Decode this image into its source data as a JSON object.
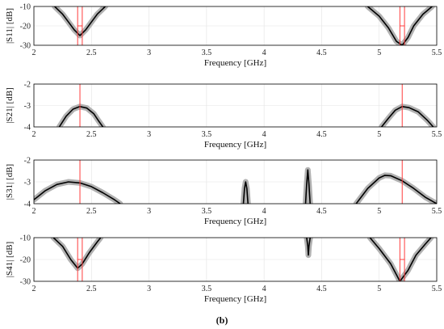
{
  "chart_data": [
    {
      "type": "line",
      "ylabel": "|S11| [dB]",
      "xlabel": "Frequency [GHz]",
      "xlim": [
        2,
        5.5
      ],
      "ylim": [
        -30,
        -10
      ],
      "xticks": [
        "2",
        "2.5",
        "3",
        "3.5",
        "4",
        "4.5",
        "5",
        "5.5"
      ],
      "yticks": [
        "-10",
        "-20",
        "-30"
      ],
      "grid": true,
      "series": [
        {
          "points": [
            [
              2.18,
              -10
            ],
            [
              2.25,
              -14
            ],
            [
              2.3,
              -18
            ],
            [
              2.35,
              -22
            ],
            [
              2.4,
              -25
            ],
            [
              2.45,
              -22
            ],
            [
              2.5,
              -18
            ],
            [
              2.55,
              -14
            ],
            [
              2.62,
              -10
            ]
          ]
        },
        {
          "points": [
            [
              4.9,
              -10
            ],
            [
              5.0,
              -15
            ],
            [
              5.08,
              -21
            ],
            [
              5.15,
              -28
            ],
            [
              5.2,
              -30
            ],
            [
              5.25,
              -26
            ],
            [
              5.3,
              -20
            ],
            [
              5.38,
              -14
            ],
            [
              5.46,
              -10
            ]
          ]
        }
      ],
      "markers_x": [
        2.38,
        2.42,
        5.18,
        5.22
      ],
      "marker_y": -20
    },
    {
      "type": "line",
      "ylabel": "|S21| [dB]",
      "xlabel": "Frequency [GHz]",
      "xlim": [
        2,
        5.5
      ],
      "ylim": [
        -4,
        -2
      ],
      "xticks": [
        "2",
        "2.5",
        "3",
        "3.5",
        "4",
        "4.5",
        "5",
        "5.5"
      ],
      "yticks": [
        "-2",
        "-3",
        "-4"
      ],
      "grid": true,
      "series": [
        {
          "points": [
            [
              2.22,
              -4
            ],
            [
              2.28,
              -3.5
            ],
            [
              2.34,
              -3.17
            ],
            [
              2.4,
              -3.05
            ],
            [
              2.46,
              -3.12
            ],
            [
              2.52,
              -3.38
            ],
            [
              2.56,
              -3.7
            ],
            [
              2.6,
              -4
            ]
          ]
        },
        {
          "points": [
            [
              5.02,
              -4
            ],
            [
              5.08,
              -3.6
            ],
            [
              5.14,
              -3.22
            ],
            [
              5.2,
              -3.05
            ],
            [
              5.26,
              -3.1
            ],
            [
              5.34,
              -3.3
            ],
            [
              5.42,
              -3.7
            ],
            [
              5.47,
              -4
            ]
          ]
        }
      ],
      "markers_x": [
        2.4,
        5.2
      ]
    },
    {
      "type": "line",
      "ylabel": "|S31| [dB]",
      "xlabel": "Frequency [GHz]",
      "xlim": [
        2,
        5.5
      ],
      "ylim": [
        -4,
        -2
      ],
      "xticks": [
        "2",
        "2.5",
        "3",
        "3.5",
        "4",
        "4.5",
        "5",
        "5.5"
      ],
      "yticks": [
        "-2",
        "-3",
        "-4"
      ],
      "grid": true,
      "series": [
        {
          "points": [
            [
              2.0,
              -3.82
            ],
            [
              2.1,
              -3.4
            ],
            [
              2.2,
              -3.12
            ],
            [
              2.3,
              -3.0
            ],
            [
              2.4,
              -3.05
            ],
            [
              2.5,
              -3.22
            ],
            [
              2.6,
              -3.5
            ],
            [
              2.7,
              -3.82
            ],
            [
              2.75,
              -4
            ]
          ]
        },
        {
          "points": [
            [
              3.82,
              -4
            ],
            [
              3.83,
              -3.3
            ],
            [
              3.84,
              -3.0
            ],
            [
              3.85,
              -3.3
            ],
            [
              3.86,
              -4
            ]
          ]
        },
        {
          "points": [
            [
              4.36,
              -4
            ],
            [
              4.37,
              -3.1
            ],
            [
              4.38,
              -2.45
            ],
            [
              4.39,
              -3.1
            ],
            [
              4.4,
              -4
            ]
          ]
        },
        {
          "points": [
            [
              4.8,
              -4
            ],
            [
              4.9,
              -3.3
            ],
            [
              5.0,
              -2.82
            ],
            [
              5.05,
              -2.7
            ],
            [
              5.1,
              -2.72
            ],
            [
              5.2,
              -2.95
            ],
            [
              5.3,
              -3.3
            ],
            [
              5.4,
              -3.7
            ],
            [
              5.5,
              -4
            ]
          ]
        }
      ],
      "markers_x": [
        2.4,
        5.2
      ]
    },
    {
      "type": "line",
      "ylabel": "|S41| [dB]",
      "xlabel": "Frequency [GHz]",
      "xlim": [
        2,
        5.5
      ],
      "ylim": [
        -30,
        -10
      ],
      "xticks": [
        "2",
        "2.5",
        "3",
        "3.5",
        "4",
        "4.5",
        "5",
        "5.5"
      ],
      "yticks": [
        "-10",
        "-20",
        "-30"
      ],
      "grid": true,
      "series": [
        {
          "points": [
            [
              2.17,
              -10
            ],
            [
              2.25,
              -14
            ],
            [
              2.32,
              -20
            ],
            [
              2.38,
              -24
            ],
            [
              2.42,
              -22
            ],
            [
              2.48,
              -17
            ],
            [
              2.55,
              -12
            ],
            [
              2.58,
              -10
            ]
          ]
        },
        {
          "points": [
            [
              4.37,
              -10
            ],
            [
              4.38,
              -14
            ],
            [
              4.385,
              -18
            ],
            [
              4.39,
              -14
            ],
            [
              4.4,
              -10
            ]
          ]
        },
        {
          "points": [
            [
              4.92,
              -10
            ],
            [
              5.0,
              -15
            ],
            [
              5.1,
              -22
            ],
            [
              5.18,
              -30
            ],
            [
              5.25,
              -25
            ],
            [
              5.32,
              -18
            ],
            [
              5.4,
              -13
            ],
            [
              5.45,
              -10
            ]
          ]
        }
      ],
      "markers_x": [
        2.38,
        2.42,
        5.18,
        5.22
      ],
      "marker_y": -20
    }
  ],
  "caption": "(b)"
}
